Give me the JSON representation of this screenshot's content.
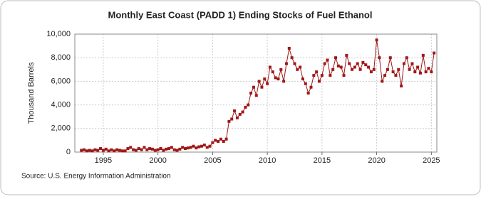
{
  "chart_data": {
    "type": "line",
    "title": "Monthly East Coast (PADD 1) Ending Stocks of Fuel Ethanol",
    "y_label": "Thousand Barrels",
    "source": "Source: U.S. Energy Information Administration",
    "x": [
      1993,
      1993.25,
      1993.5,
      1993.75,
      1994,
      1994.25,
      1994.5,
      1994.75,
      1995,
      1995.25,
      1995.5,
      1995.75,
      1996,
      1996.25,
      1996.5,
      1996.75,
      1997,
      1997.25,
      1997.5,
      1997.75,
      1998,
      1998.25,
      1998.5,
      1998.75,
      1999,
      1999.25,
      1999.5,
      1999.75,
      2000,
      2000.25,
      2000.5,
      2000.75,
      2001,
      2001.25,
      2001.5,
      2001.75,
      2002,
      2002.25,
      2002.5,
      2002.75,
      2003,
      2003.25,
      2003.5,
      2003.75,
      2004,
      2004.25,
      2004.5,
      2004.75,
      2005,
      2005.25,
      2005.5,
      2005.75,
      2006,
      2006.25,
      2006.5,
      2006.75,
      2007,
      2007.25,
      2007.5,
      2007.75,
      2008,
      2008.25,
      2008.5,
      2008.75,
      2009,
      2009.25,
      2009.5,
      2009.75,
      2010,
      2010.25,
      2010.5,
      2010.75,
      2011,
      2011.25,
      2011.5,
      2011.75,
      2012,
      2012.25,
      2012.5,
      2012.75,
      2013,
      2013.25,
      2013.5,
      2013.75,
      2014,
      2014.25,
      2014.5,
      2014.75,
      2015,
      2015.25,
      2015.5,
      2015.75,
      2016,
      2016.25,
      2016.5,
      2016.75,
      2017,
      2017.25,
      2017.5,
      2017.75,
      2018,
      2018.25,
      2018.5,
      2018.75,
      2019,
      2019.25,
      2019.5,
      2019.75,
      2020,
      2020.25,
      2020.5,
      2020.75,
      2021,
      2021.25,
      2021.5,
      2021.75,
      2022,
      2022.25,
      2022.5,
      2022.75,
      2023,
      2023.25,
      2023.5,
      2023.75,
      2024,
      2024.25,
      2024.5,
      2024.75,
      2025,
      2025.25
    ],
    "series": [
      {
        "name": "East Coast (PADD 1) Ending Stocks of Fuel Ethanol",
        "color": "#a01818",
        "values": [
          150,
          200,
          100,
          150,
          100,
          200,
          150,
          300,
          150,
          250,
          100,
          200,
          100,
          200,
          150,
          100,
          100,
          300,
          400,
          200,
          150,
          300,
          200,
          400,
          200,
          300,
          250,
          150,
          200,
          300,
          150,
          250,
          300,
          400,
          200,
          150,
          250,
          400,
          300,
          350,
          400,
          500,
          350,
          450,
          500,
          600,
          400,
          500,
          800,
          1000,
          900,
          1100,
          900,
          1100,
          2600,
          2800,
          3500,
          2900,
          3200,
          3400,
          3800,
          4000,
          5000,
          5500,
          4800,
          6000,
          5500,
          6200,
          5800,
          7200,
          6800,
          6300,
          6200,
          7000,
          6000,
          7500,
          8800,
          8000,
          7500,
          7000,
          7200,
          6200,
          5800,
          5000,
          5500,
          6500,
          6800,
          6000,
          6500,
          7500,
          7800,
          6500,
          7000,
          8000,
          7300,
          7200,
          6500,
          8200,
          7500,
          7000,
          7200,
          7500,
          7000,
          7600,
          7400,
          7200,
          6800,
          7000,
          9500,
          8000,
          6000,
          6500,
          7000,
          8000,
          6800,
          6500,
          7000,
          5600,
          7500,
          8000,
          7000,
          7500,
          6800,
          7200,
          6700,
          8200,
          6800,
          7100,
          6800,
          8400
        ]
      }
    ],
    "xlim": [
      1992.4,
      2025.5
    ],
    "xticks": [
      1995,
      2000,
      2005,
      2010,
      2015,
      2020,
      2025
    ],
    "ylim": [
      0,
      10000
    ],
    "yticks": [
      0,
      {
        "value": 2000,
        "label": "2,000"
      },
      {
        "value": 4000,
        "label": "4,000"
      },
      {
        "value": 6000,
        "label": "6,000"
      },
      {
        "value": 8000,
        "label": "8,000"
      },
      {
        "value": 10000,
        "label": "10,000"
      }
    ],
    "grid": true
  }
}
